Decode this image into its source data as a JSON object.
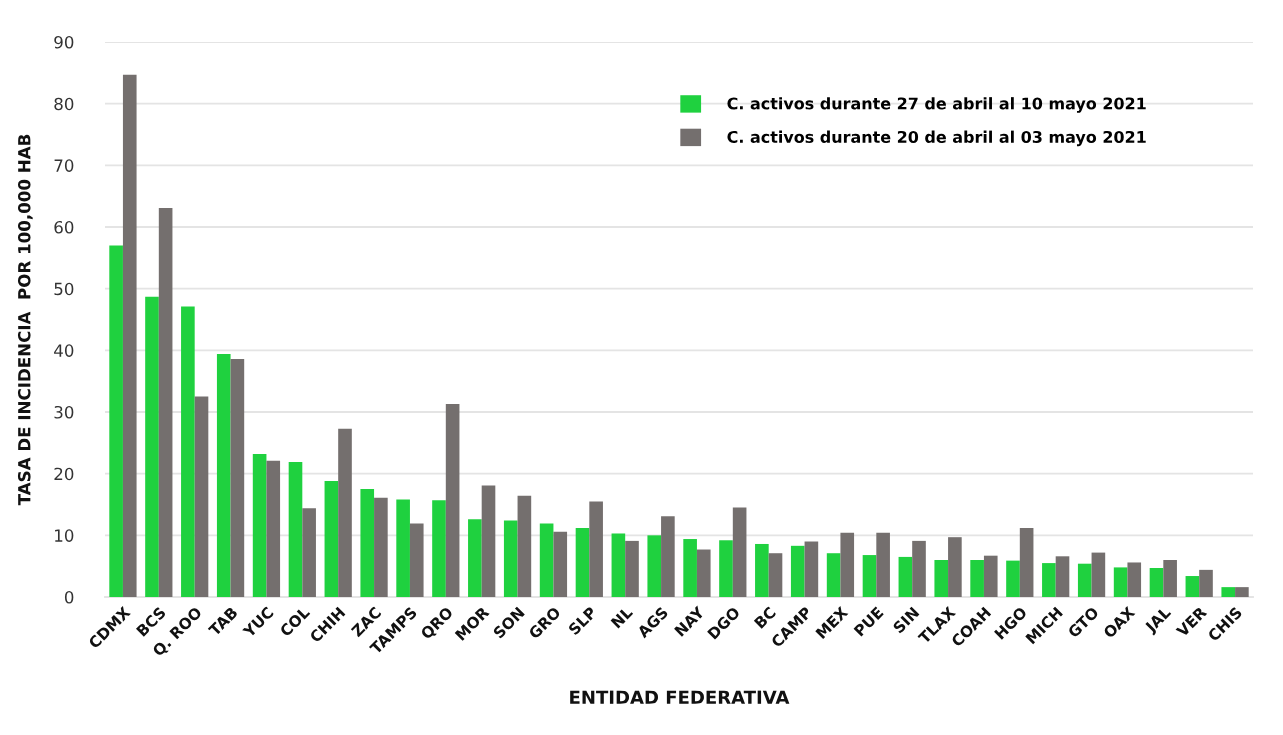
{
  "chart_data": {
    "type": "bar",
    "xlabel": "ENTIDAD FEDERATIVA",
    "ylabel": "TASA DE INCIDENCIA  POR 100,000 HAB",
    "categories": [
      "CDMX",
      "BCS",
      "Q. ROO",
      "TAB",
      "YUC",
      "COL",
      "CHIH",
      "ZAC",
      "TAMPS",
      "QRO",
      "MOR",
      "SON",
      "GRO",
      "SLP",
      "NL",
      "AGS",
      "NAY",
      "DGO",
      "BC",
      "CAMP",
      "MEX",
      "PUE",
      "SIN",
      "TLAX",
      "COAH",
      "HGO",
      "MICH",
      "GTO",
      "OAX",
      "JAL",
      "VER",
      "CHIS"
    ],
    "series": [
      {
        "name": "C. activos durante 27 de abril al 10 mayo 2021",
        "color": "#1fd13f",
        "values": [
          57,
          48.7,
          47.1,
          39.4,
          23.2,
          21.9,
          18.8,
          17.5,
          15.8,
          15.7,
          12.6,
          12.4,
          11.9,
          11.2,
          10.3,
          10.0,
          9.4,
          9.2,
          8.6,
          8.3,
          7.1,
          6.8,
          6.5,
          6.0,
          6.0,
          5.9,
          5.5,
          5.4,
          4.8,
          4.7,
          3.4,
          1.6
        ]
      },
      {
        "name": "C. activos durante 20 de abril al 03 mayo 2021",
        "color": "#746f6e",
        "values": [
          84.7,
          63.1,
          32.5,
          38.6,
          22.1,
          14.4,
          27.3,
          16.1,
          11.9,
          31.3,
          18.1,
          16.4,
          10.6,
          15.5,
          9.1,
          13.1,
          7.7,
          14.5,
          7.1,
          9.0,
          10.4,
          10.4,
          9.1,
          9.7,
          6.7,
          11.2,
          6.6,
          7.2,
          5.6,
          6.0,
          4.4,
          1.6
        ]
      }
    ],
    "ylim": [
      0,
      90
    ],
    "yticks": [
      0,
      10,
      20,
      30,
      40,
      50,
      60,
      70,
      80,
      90
    ],
    "grid": "y",
    "legend": "top right"
  }
}
